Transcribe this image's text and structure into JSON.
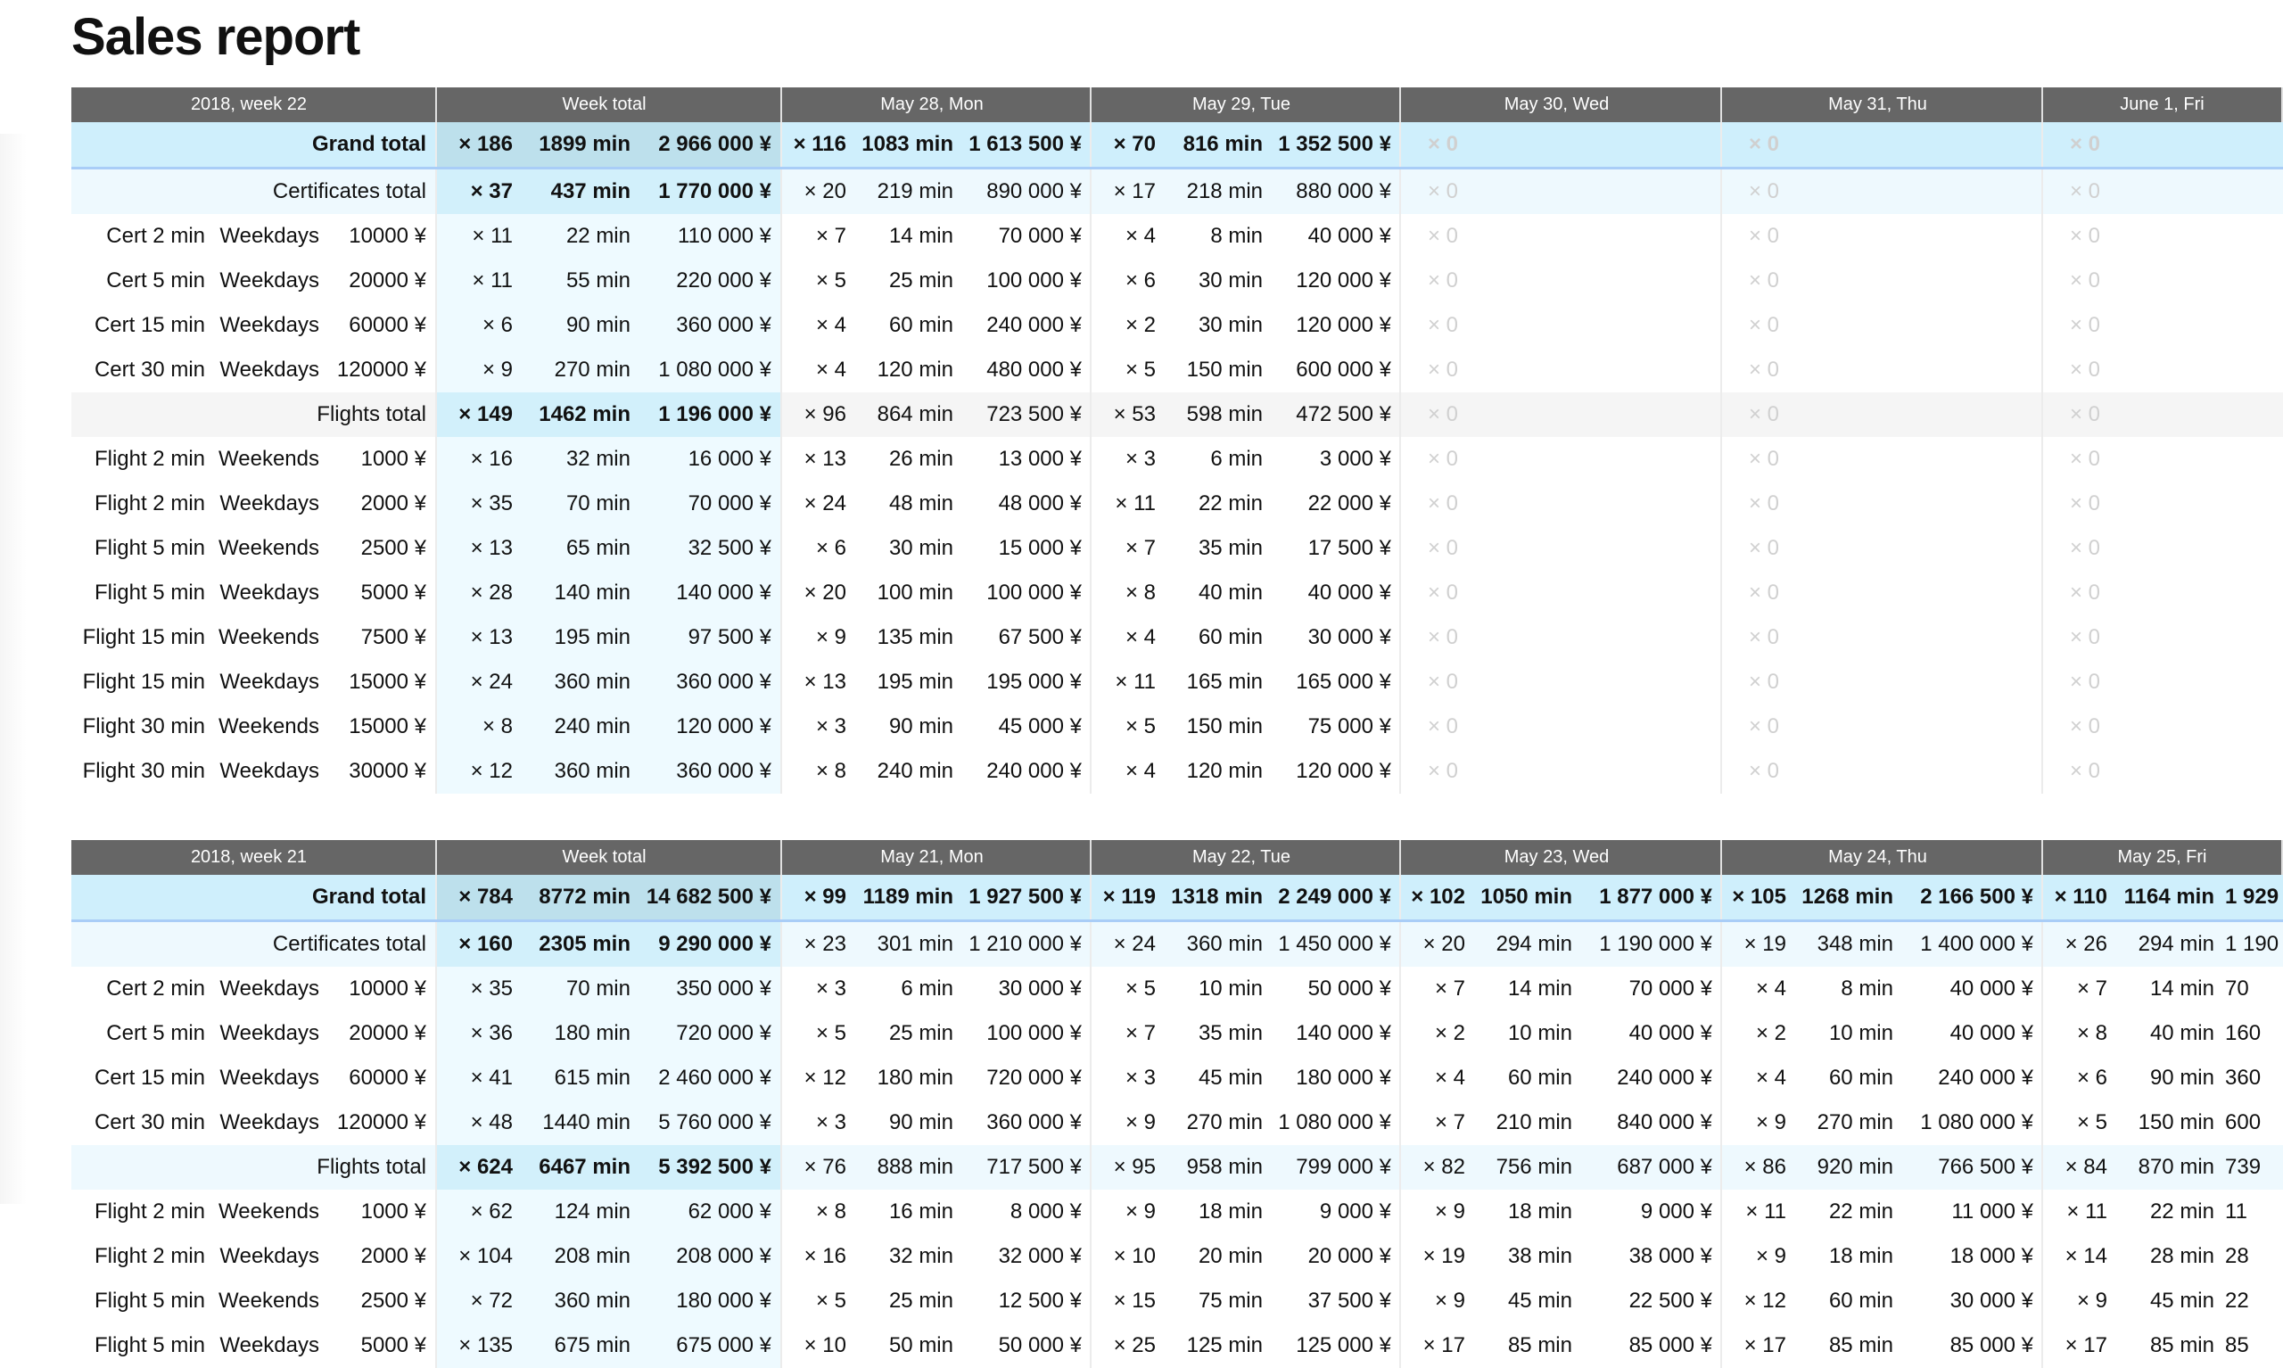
{
  "title": "Sales report",
  "weeks": [
    {
      "header": [
        "2018, week 22",
        "Week total",
        "May 28, Mon",
        "May 29, Tue",
        "May 30, Wed",
        "May 31, Thu",
        "June 1, Fri"
      ],
      "rows": [
        {
          "type": "grand",
          "label": [
            "Grand total"
          ],
          "total": [
            "× 186",
            "1899 min",
            "2 966 000 ¥"
          ],
          "days": [
            [
              "× 116",
              "1083 min",
              "1 613 500 ¥"
            ],
            [
              "× 70",
              "816 min",
              "1 352 500 ¥"
            ],
            [
              "× 0"
            ],
            [
              "× 0"
            ],
            [
              "× 0"
            ]
          ]
        },
        {
          "type": "sub",
          "label": [
            "Certificates total"
          ],
          "total": [
            "× 37",
            "437 min",
            "1 770 000 ¥"
          ],
          "days": [
            [
              "× 20",
              "219 min",
              "890 000 ¥"
            ],
            [
              "× 17",
              "218 min",
              "880 000 ¥"
            ],
            [
              "× 0"
            ],
            [
              "× 0"
            ],
            [
              "× 0"
            ]
          ]
        },
        {
          "type": "item",
          "label": [
            "Cert 2 min",
            "Weekdays",
            "10000 ¥"
          ],
          "total": [
            "× 11",
            "22 min",
            "110 000 ¥"
          ],
          "days": [
            [
              "× 7",
              "14 min",
              "70 000 ¥"
            ],
            [
              "× 4",
              "8 min",
              "40 000 ¥"
            ],
            [
              "× 0"
            ],
            [
              "× 0"
            ],
            [
              "× 0"
            ]
          ]
        },
        {
          "type": "item",
          "label": [
            "Cert 5 min",
            "Weekdays",
            "20000 ¥"
          ],
          "total": [
            "× 11",
            "55 min",
            "220 000 ¥"
          ],
          "days": [
            [
              "× 5",
              "25 min",
              "100 000 ¥"
            ],
            [
              "× 6",
              "30 min",
              "120 000 ¥"
            ],
            [
              "× 0"
            ],
            [
              "× 0"
            ],
            [
              "× 0"
            ]
          ]
        },
        {
          "type": "item",
          "label": [
            "Cert 15 min",
            "Weekdays",
            "60000 ¥"
          ],
          "total": [
            "× 6",
            "90 min",
            "360 000 ¥"
          ],
          "days": [
            [
              "× 4",
              "60 min",
              "240 000 ¥"
            ],
            [
              "× 2",
              "30 min",
              "120 000 ¥"
            ],
            [
              "× 0"
            ],
            [
              "× 0"
            ],
            [
              "× 0"
            ]
          ]
        },
        {
          "type": "item",
          "label": [
            "Cert 30 min",
            "Weekdays",
            "120000 ¥"
          ],
          "total": [
            "× 9",
            "270 min",
            "1 080 000 ¥"
          ],
          "days": [
            [
              "× 4",
              "120 min",
              "480 000 ¥"
            ],
            [
              "× 5",
              "150 min",
              "600 000 ¥"
            ],
            [
              "× 0"
            ],
            [
              "× 0"
            ],
            [
              "× 0"
            ]
          ]
        },
        {
          "type": "gray",
          "label": [
            "Flights total"
          ],
          "total": [
            "× 149",
            "1462 min",
            "1 196 000 ¥"
          ],
          "days": [
            [
              "× 96",
              "864 min",
              "723 500 ¥"
            ],
            [
              "× 53",
              "598 min",
              "472 500 ¥"
            ],
            [
              "× 0"
            ],
            [
              "× 0"
            ],
            [
              "× 0"
            ]
          ]
        },
        {
          "type": "item",
          "label": [
            "Flight 2 min",
            "Weekends",
            "1000 ¥"
          ],
          "total": [
            "× 16",
            "32 min",
            "16 000 ¥"
          ],
          "days": [
            [
              "× 13",
              "26 min",
              "13 000 ¥"
            ],
            [
              "× 3",
              "6 min",
              "3 000 ¥"
            ],
            [
              "× 0"
            ],
            [
              "× 0"
            ],
            [
              "× 0"
            ]
          ]
        },
        {
          "type": "item",
          "label": [
            "Flight 2 min",
            "Weekdays",
            "2000 ¥"
          ],
          "total": [
            "× 35",
            "70 min",
            "70 000 ¥"
          ],
          "days": [
            [
              "× 24",
              "48 min",
              "48 000 ¥"
            ],
            [
              "× 11",
              "22 min",
              "22 000 ¥"
            ],
            [
              "× 0"
            ],
            [
              "× 0"
            ],
            [
              "× 0"
            ]
          ]
        },
        {
          "type": "item",
          "label": [
            "Flight 5 min",
            "Weekends",
            "2500 ¥"
          ],
          "total": [
            "× 13",
            "65 min",
            "32 500 ¥"
          ],
          "days": [
            [
              "× 6",
              "30 min",
              "15 000 ¥"
            ],
            [
              "× 7",
              "35 min",
              "17 500 ¥"
            ],
            [
              "× 0"
            ],
            [
              "× 0"
            ],
            [
              "× 0"
            ]
          ]
        },
        {
          "type": "item",
          "label": [
            "Flight 5 min",
            "Weekdays",
            "5000 ¥"
          ],
          "total": [
            "× 28",
            "140 min",
            "140 000 ¥"
          ],
          "days": [
            [
              "× 20",
              "100 min",
              "100 000 ¥"
            ],
            [
              "× 8",
              "40 min",
              "40 000 ¥"
            ],
            [
              "× 0"
            ],
            [
              "× 0"
            ],
            [
              "× 0"
            ]
          ]
        },
        {
          "type": "item",
          "label": [
            "Flight 15 min",
            "Weekends",
            "7500 ¥"
          ],
          "total": [
            "× 13",
            "195 min",
            "97 500 ¥"
          ],
          "days": [
            [
              "× 9",
              "135 min",
              "67 500 ¥"
            ],
            [
              "× 4",
              "60 min",
              "30 000 ¥"
            ],
            [
              "× 0"
            ],
            [
              "× 0"
            ],
            [
              "× 0"
            ]
          ]
        },
        {
          "type": "item",
          "label": [
            "Flight 15 min",
            "Weekdays",
            "15000 ¥"
          ],
          "total": [
            "× 24",
            "360 min",
            "360 000 ¥"
          ],
          "days": [
            [
              "× 13",
              "195 min",
              "195 000 ¥"
            ],
            [
              "× 11",
              "165 min",
              "165 000 ¥"
            ],
            [
              "× 0"
            ],
            [
              "× 0"
            ],
            [
              "× 0"
            ]
          ]
        },
        {
          "type": "item",
          "label": [
            "Flight 30 min",
            "Weekends",
            "15000 ¥"
          ],
          "total": [
            "× 8",
            "240 min",
            "120 000 ¥"
          ],
          "days": [
            [
              "× 3",
              "90 min",
              "45 000 ¥"
            ],
            [
              "× 5",
              "150 min",
              "75 000 ¥"
            ],
            [
              "× 0"
            ],
            [
              "× 0"
            ],
            [
              "× 0"
            ]
          ]
        },
        {
          "type": "item",
          "label": [
            "Flight 30 min",
            "Weekdays",
            "30000 ¥"
          ],
          "total": [
            "× 12",
            "360 min",
            "360 000 ¥"
          ],
          "days": [
            [
              "× 8",
              "240 min",
              "240 000 ¥"
            ],
            [
              "× 4",
              "120 min",
              "120 000 ¥"
            ],
            [
              "× 0"
            ],
            [
              "× 0"
            ],
            [
              "× 0"
            ]
          ]
        }
      ]
    },
    {
      "header": [
        "2018, week 21",
        "Week total",
        "May 21, Mon",
        "May 22, Tue",
        "May 23, Wed",
        "May 24, Thu",
        "May 25, Fri"
      ],
      "rows": [
        {
          "type": "grand",
          "label": [
            "Grand total"
          ],
          "total": [
            "× 784",
            "8772 min",
            "14 682 500 ¥"
          ],
          "days": [
            [
              "× 99",
              "1189 min",
              "1 927 500 ¥"
            ],
            [
              "× 119",
              "1318 min",
              "2 249 000 ¥"
            ],
            [
              "× 102",
              "1050 min",
              "1 877 000 ¥"
            ],
            [
              "× 105",
              "1268 min",
              "2 166 500 ¥"
            ],
            [
              "× 110",
              "1164 min",
              "1 929"
            ]
          ]
        },
        {
          "type": "sub",
          "label": [
            "Certificates total"
          ],
          "total": [
            "× 160",
            "2305 min",
            "9 290 000 ¥"
          ],
          "days": [
            [
              "× 23",
              "301 min",
              "1 210 000 ¥"
            ],
            [
              "× 24",
              "360 min",
              "1 450 000 ¥"
            ],
            [
              "× 20",
              "294 min",
              "1 190 000 ¥"
            ],
            [
              "× 19",
              "348 min",
              "1 400 000 ¥"
            ],
            [
              "× 26",
              "294 min",
              "1 190"
            ]
          ]
        },
        {
          "type": "item",
          "label": [
            "Cert 2 min",
            "Weekdays",
            "10000 ¥"
          ],
          "total": [
            "× 35",
            "70 min",
            "350 000 ¥"
          ],
          "days": [
            [
              "× 3",
              "6 min",
              "30 000 ¥"
            ],
            [
              "× 5",
              "10 min",
              "50 000 ¥"
            ],
            [
              "× 7",
              "14 min",
              "70 000 ¥"
            ],
            [
              "× 4",
              "8 min",
              "40 000 ¥"
            ],
            [
              "× 7",
              "14 min",
              "70"
            ]
          ]
        },
        {
          "type": "item",
          "label": [
            "Cert 5 min",
            "Weekdays",
            "20000 ¥"
          ],
          "total": [
            "× 36",
            "180 min",
            "720 000 ¥"
          ],
          "days": [
            [
              "× 5",
              "25 min",
              "100 000 ¥"
            ],
            [
              "× 7",
              "35 min",
              "140 000 ¥"
            ],
            [
              "× 2",
              "10 min",
              "40 000 ¥"
            ],
            [
              "× 2",
              "10 min",
              "40 000 ¥"
            ],
            [
              "× 8",
              "40 min",
              "160"
            ]
          ]
        },
        {
          "type": "item",
          "label": [
            "Cert 15 min",
            "Weekdays",
            "60000 ¥"
          ],
          "total": [
            "× 41",
            "615 min",
            "2 460 000 ¥"
          ],
          "days": [
            [
              "× 12",
              "180 min",
              "720 000 ¥"
            ],
            [
              "× 3",
              "45 min",
              "180 000 ¥"
            ],
            [
              "× 4",
              "60 min",
              "240 000 ¥"
            ],
            [
              "× 4",
              "60 min",
              "240 000 ¥"
            ],
            [
              "× 6",
              "90 min",
              "360"
            ]
          ]
        },
        {
          "type": "item",
          "label": [
            "Cert 30 min",
            "Weekdays",
            "120000 ¥"
          ],
          "total": [
            "× 48",
            "1440 min",
            "5 760 000 ¥"
          ],
          "days": [
            [
              "× 3",
              "90 min",
              "360 000 ¥"
            ],
            [
              "× 9",
              "270 min",
              "1 080 000 ¥"
            ],
            [
              "× 7",
              "210 min",
              "840 000 ¥"
            ],
            [
              "× 9",
              "270 min",
              "1 080 000 ¥"
            ],
            [
              "× 5",
              "150 min",
              "600"
            ]
          ]
        },
        {
          "type": "sub",
          "label": [
            "Flights total"
          ],
          "total": [
            "× 624",
            "6467 min",
            "5 392 500 ¥"
          ],
          "days": [
            [
              "× 76",
              "888 min",
              "717 500 ¥"
            ],
            [
              "× 95",
              "958 min",
              "799 000 ¥"
            ],
            [
              "× 82",
              "756 min",
              "687 000 ¥"
            ],
            [
              "× 86",
              "920 min",
              "766 500 ¥"
            ],
            [
              "× 84",
              "870 min",
              "739"
            ]
          ]
        },
        {
          "type": "item",
          "label": [
            "Flight 2 min",
            "Weekends",
            "1000 ¥"
          ],
          "total": [
            "× 62",
            "124 min",
            "62 000 ¥"
          ],
          "days": [
            [
              "× 8",
              "16 min",
              "8 000 ¥"
            ],
            [
              "× 9",
              "18 min",
              "9 000 ¥"
            ],
            [
              "× 9",
              "18 min",
              "9 000 ¥"
            ],
            [
              "× 11",
              "22 min",
              "11 000 ¥"
            ],
            [
              "× 11",
              "22 min",
              "11"
            ]
          ]
        },
        {
          "type": "item",
          "label": [
            "Flight 2 min",
            "Weekdays",
            "2000 ¥"
          ],
          "total": [
            "× 104",
            "208 min",
            "208 000 ¥"
          ],
          "days": [
            [
              "× 16",
              "32 min",
              "32 000 ¥"
            ],
            [
              "× 10",
              "20 min",
              "20 000 ¥"
            ],
            [
              "× 19",
              "38 min",
              "38 000 ¥"
            ],
            [
              "× 9",
              "18 min",
              "18 000 ¥"
            ],
            [
              "× 14",
              "28 min",
              "28"
            ]
          ]
        },
        {
          "type": "item",
          "label": [
            "Flight 5 min",
            "Weekends",
            "2500 ¥"
          ],
          "total": [
            "× 72",
            "360 min",
            "180 000 ¥"
          ],
          "days": [
            [
              "× 5",
              "25 min",
              "12 500 ¥"
            ],
            [
              "× 15",
              "75 min",
              "37 500 ¥"
            ],
            [
              "× 9",
              "45 min",
              "22 500 ¥"
            ],
            [
              "× 12",
              "60 min",
              "30 000 ¥"
            ],
            [
              "× 9",
              "45 min",
              "22"
            ]
          ]
        },
        {
          "type": "item",
          "label": [
            "Flight 5 min",
            "Weekdays",
            "5000 ¥"
          ],
          "total": [
            "× 135",
            "675 min",
            "675 000 ¥"
          ],
          "days": [
            [
              "× 10",
              "50 min",
              "50 000 ¥"
            ],
            [
              "× 25",
              "125 min",
              "125 000 ¥"
            ],
            [
              "× 17",
              "85 min",
              "85 000 ¥"
            ],
            [
              "× 17",
              "85 min",
              "85 000 ¥"
            ],
            [
              "× 17",
              "85 min",
              "85"
            ]
          ]
        }
      ]
    }
  ],
  "colors": {
    "header_bg": "#666666",
    "grand_bg": "#cfeffc",
    "subtotal_bg": "#eef9fe",
    "zero_text": "#d0d0d0"
  }
}
